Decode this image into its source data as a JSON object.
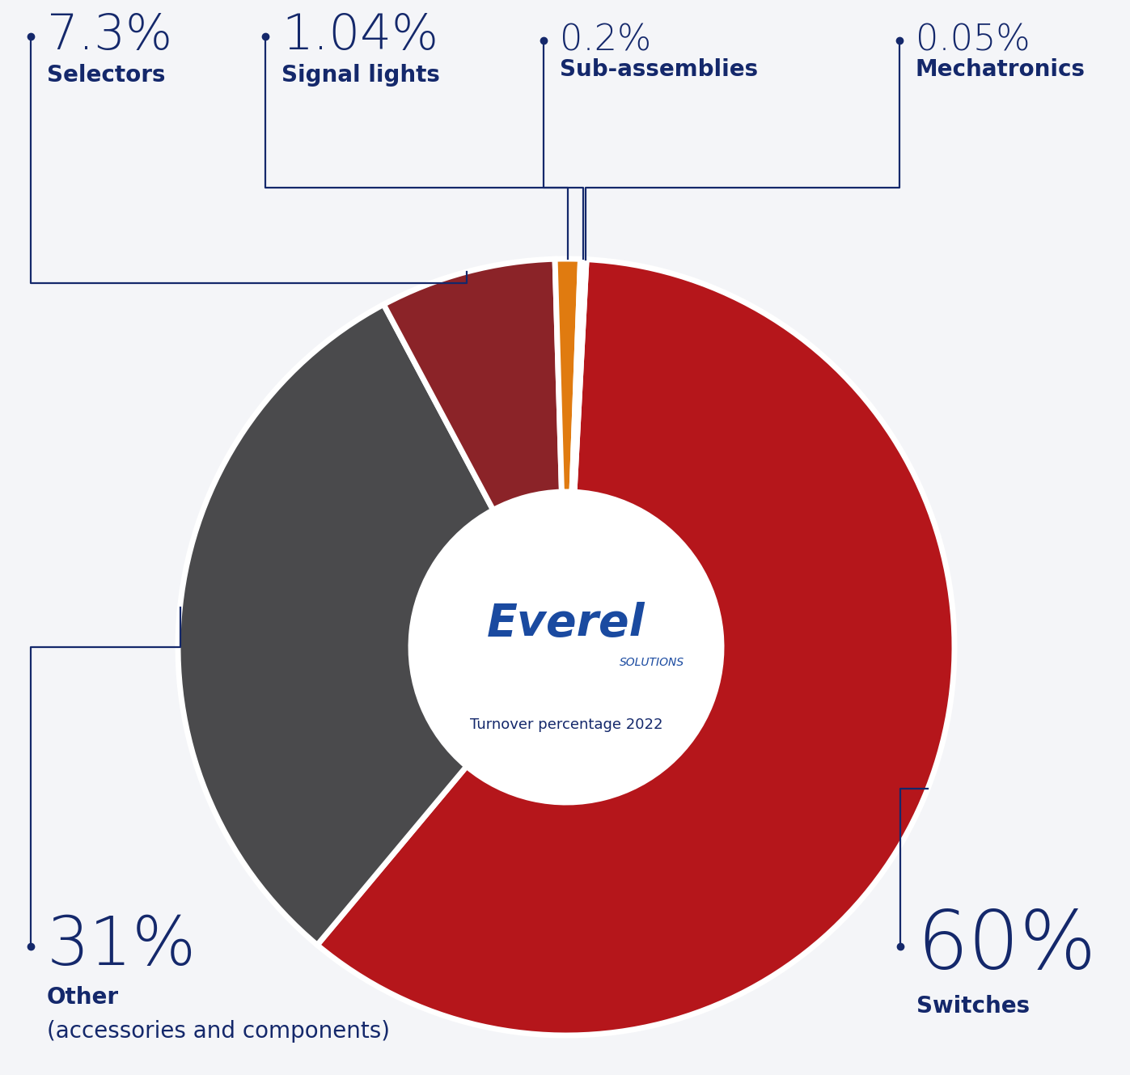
{
  "chart_data": {
    "type": "pie",
    "title": "Turnover percentage 2022",
    "logo": "Everel",
    "logo_subtitle": "SOLUTIONS",
    "categories": [
      "Switches",
      "Other",
      "Selectors",
      "Signal lights",
      "Sub-assemblies",
      "Mechatronics"
    ],
    "notes": [
      null,
      "(accessories and components)",
      null,
      null,
      null,
      null
    ],
    "values": [
      60,
      31,
      7.3,
      1.04,
      0.2,
      0.05
    ],
    "value_labels": [
      "60%",
      "31%",
      "7.3%",
      "1.04%",
      "0.2%",
      "0.05%"
    ],
    "colors": [
      "#b5161b",
      "#4a4a4c",
      "#8b2328",
      "#e07b10",
      "#1a5aa8",
      "#9aa4b8"
    ],
    "data_labels": true
  }
}
